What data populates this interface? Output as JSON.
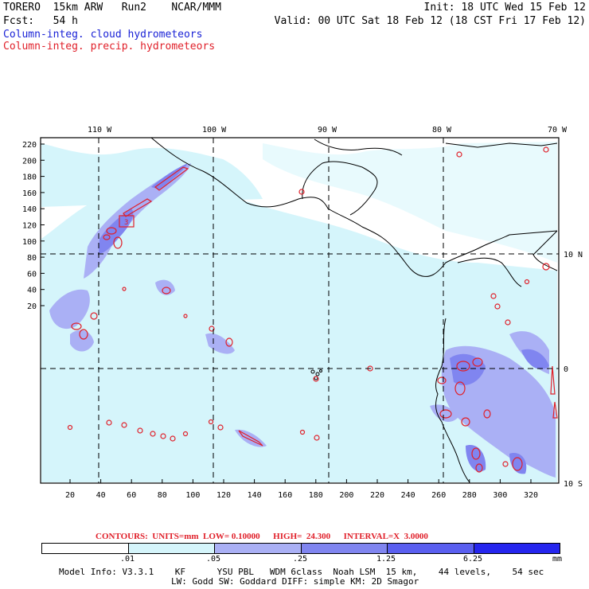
{
  "header": {
    "title": "TORERO  15km ARW   Run2    NCAR/MMM",
    "init": "Init: 18 UTC Wed 15 Feb 12",
    "fcst": "Fcst:   54 h",
    "valid": "Valid: 00 UTC Sat 18 Feb 12 (18 CST Fri 17 Feb 12)",
    "field1": "Column-integ. cloud hydrometeors",
    "field2": "Column-integ. precip. hydrometeors"
  },
  "map": {
    "lon_labels": [
      "110 W",
      "100 W",
      "90 W",
      "80 W",
      "70 W"
    ],
    "y_grid_labels": [
      "220",
      "200",
      "180",
      "160",
      "140",
      "120",
      "100",
      "80",
      "60",
      "40",
      "20"
    ],
    "x_grid_labels": [
      "20",
      "40",
      "60",
      "80",
      "100",
      "120",
      "140",
      "160",
      "180",
      "200",
      "220",
      "240",
      "260",
      "280",
      "300",
      "320"
    ],
    "lat_labels": [
      "10 N",
      "0",
      "10 S"
    ],
    "marker_label": "3",
    "colors": {
      "light": "#d5f5fb",
      "medium": "#aab0f5",
      "dark": "#8085f0",
      "contour": "#e0202a",
      "coast": "#000000"
    }
  },
  "legend": {
    "contours_text": "CONTOURS:  UNITS=mm  LOW= 0.10000      HIGH=  24.300      INTERVAL=X  3.0000",
    "labels": [
      ".01",
      ".05",
      ".25",
      "1.25",
      "6.25"
    ],
    "unit": "mm",
    "colors": [
      "#ffffff",
      "#d5f5fb",
      "#aab0f5",
      "#8085f0",
      "#5a5ff0",
      "#2525ee"
    ]
  },
  "footer": {
    "line1": "Model Info: V3.3.1    KF      YSU PBL   WDM 6class  Noah LSM  15 km,    44 levels,    54 sec",
    "line2": "LW: Godd SW: Goddard DIFF: simple KM: 2D Smagor"
  }
}
